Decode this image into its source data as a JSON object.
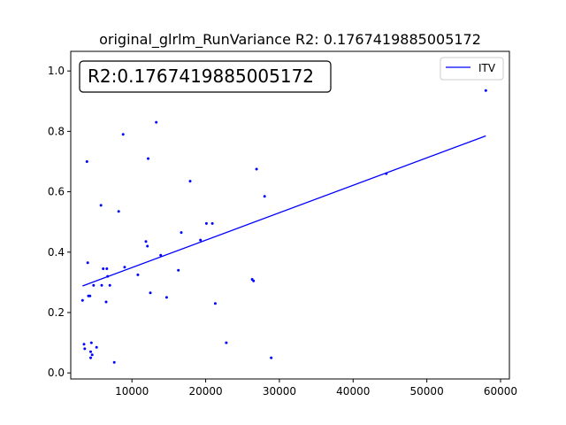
{
  "chart_data": {
    "type": "scatter",
    "title": "original_glrlm_RunVariance R2: 0.1767419885005172",
    "annotation": "R2:0.1767419885005172",
    "xlabel": "",
    "ylabel": "",
    "xlim": [
      1700,
      61200
    ],
    "ylim": [
      -0.02,
      1.065
    ],
    "x_ticks": [
      10000,
      20000,
      30000,
      40000,
      50000,
      60000
    ],
    "x_tick_labels": [
      "10000",
      "20000",
      "30000",
      "40000",
      "50000",
      "60000"
    ],
    "y_ticks": [
      0.0,
      0.2,
      0.4,
      0.6,
      0.8,
      1.0
    ],
    "y_tick_labels": [
      "0.0",
      "0.2",
      "0.4",
      "0.6",
      "0.8",
      "1.0"
    ],
    "grid": false,
    "legend_position": "top-right",
    "colors": {
      "series": "#0000ff"
    },
    "series": [
      {
        "kind": "points",
        "values": [
          [
            3300,
            0.24
          ],
          [
            3500,
            0.095
          ],
          [
            3600,
            0.08
          ],
          [
            3900,
            0.7
          ],
          [
            4000,
            0.365
          ],
          [
            4100,
            0.255
          ],
          [
            4300,
            0.255
          ],
          [
            4400,
            0.07
          ],
          [
            4400,
            0.05
          ],
          [
            4500,
            0.1
          ],
          [
            4600,
            0.06
          ],
          [
            4800,
            0.29
          ],
          [
            5200,
            0.085
          ],
          [
            5800,
            0.555
          ],
          [
            5900,
            0.29
          ],
          [
            6100,
            0.345
          ],
          [
            6500,
            0.235
          ],
          [
            6600,
            0.345
          ],
          [
            6700,
            0.32
          ],
          [
            7000,
            0.29
          ],
          [
            7600,
            0.035
          ],
          [
            8200,
            0.535
          ],
          [
            8800,
            0.79
          ],
          [
            9000,
            0.35
          ],
          [
            10800,
            0.325
          ],
          [
            11900,
            0.435
          ],
          [
            12100,
            0.42
          ],
          [
            12200,
            0.71
          ],
          [
            12500,
            0.265
          ],
          [
            13300,
            0.83
          ],
          [
            13900,
            0.39
          ],
          [
            14700,
            0.25
          ],
          [
            16300,
            0.34
          ],
          [
            16700,
            0.465
          ],
          [
            17900,
            0.635
          ],
          [
            19300,
            0.44
          ],
          [
            20100,
            0.495
          ],
          [
            20900,
            0.495
          ],
          [
            21300,
            0.23
          ],
          [
            22800,
            0.1
          ],
          [
            26300,
            0.31
          ],
          [
            26500,
            0.305
          ],
          [
            26900,
            0.675
          ],
          [
            28000,
            0.585
          ],
          [
            28900,
            0.05
          ],
          [
            44500,
            0.66
          ],
          [
            58000,
            0.935
          ]
        ]
      },
      {
        "name": "ITV",
        "kind": "line",
        "values": [
          [
            3300,
            0.288
          ],
          [
            58000,
            0.785
          ]
        ]
      }
    ]
  }
}
